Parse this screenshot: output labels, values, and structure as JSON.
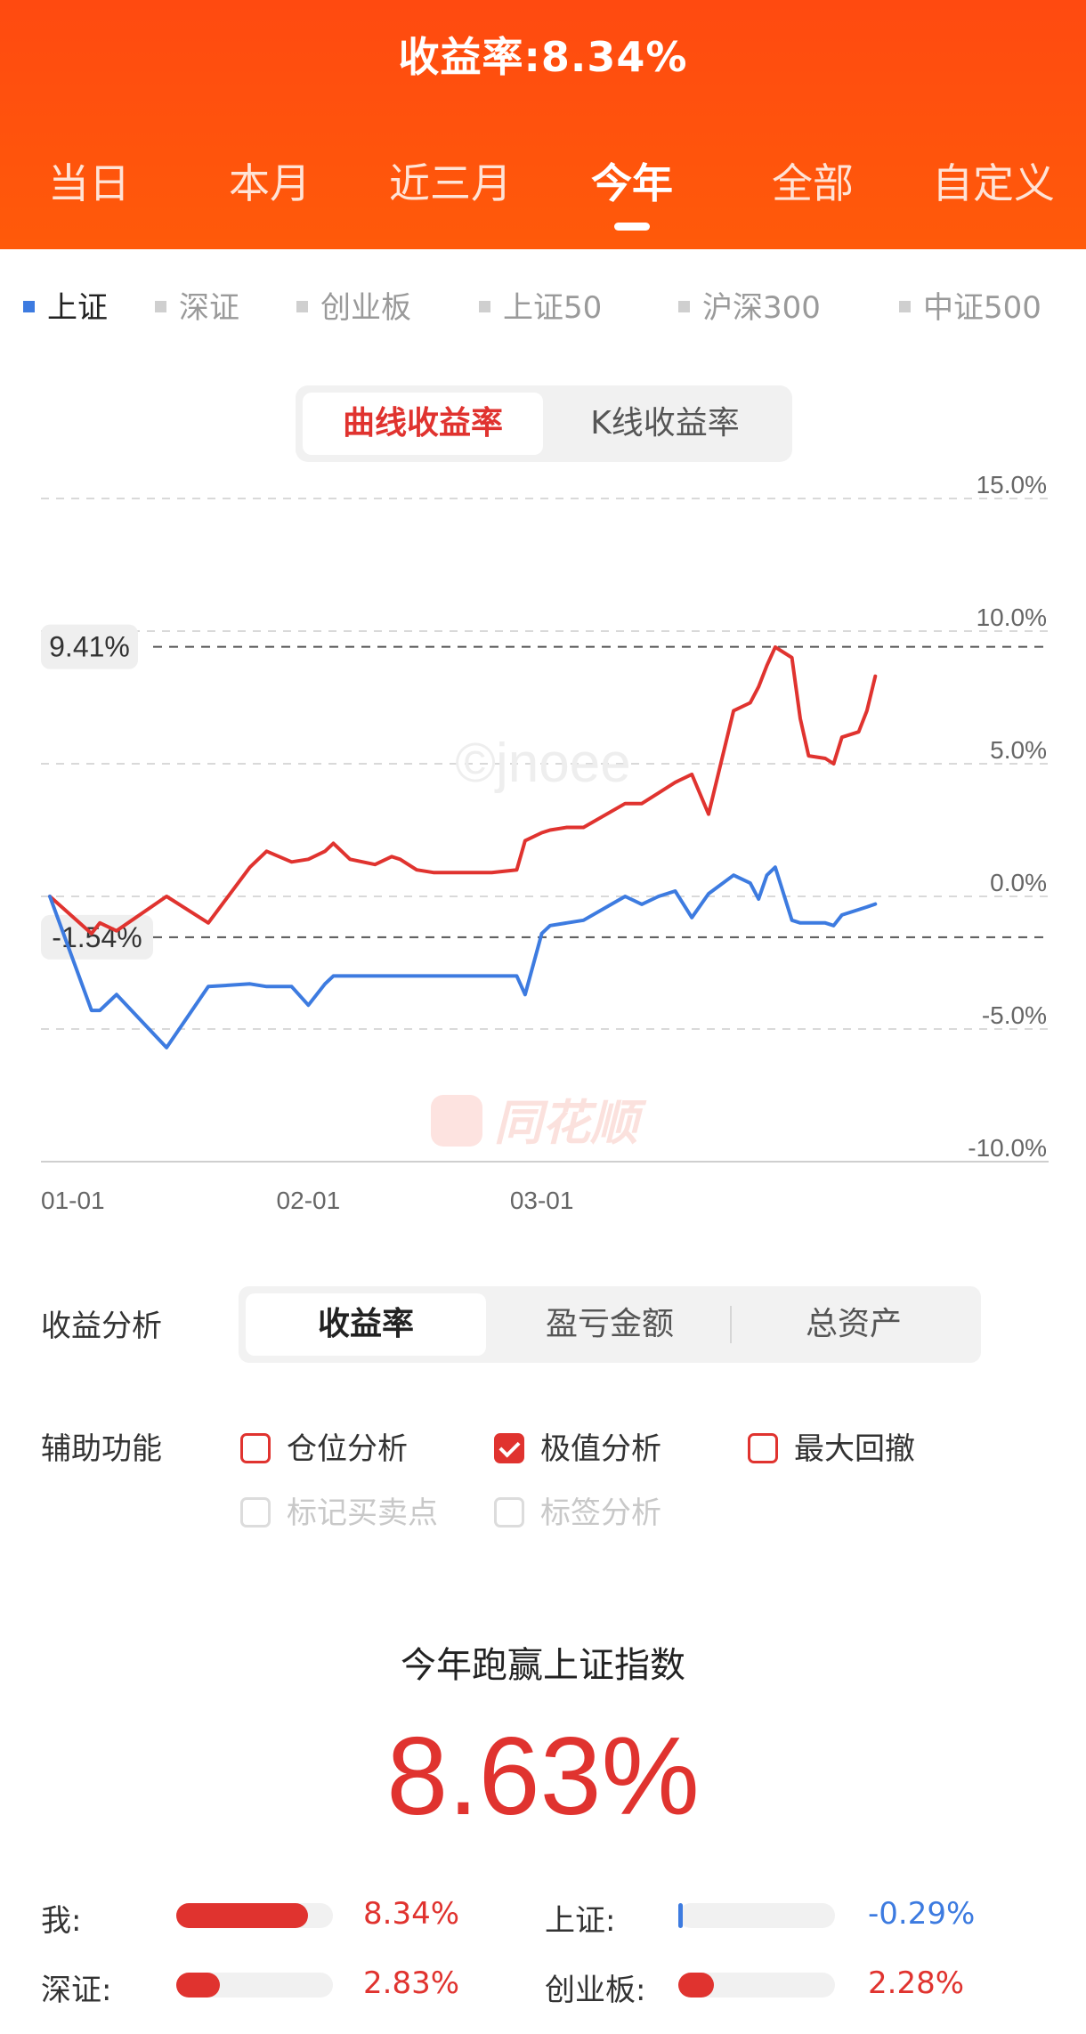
{
  "header": {
    "title": "收益率:8.34%",
    "tabs": [
      "当日",
      "本月",
      "近三月",
      "今年",
      "全部",
      "自定义"
    ],
    "active_tab": "今年"
  },
  "legend": {
    "items": [
      "上证",
      "深证",
      "创业板",
      "上证50",
      "沪深300",
      "中证500"
    ],
    "active": "上证"
  },
  "chart_mode": {
    "options": [
      "曲线收益率",
      "K线收益率"
    ],
    "active": "曲线收益率"
  },
  "colors": {
    "accent": "#ff5a0a",
    "mine": "#e0332f",
    "index": "#3d7be0"
  },
  "chart_data": {
    "type": "line",
    "x_tick_labels": [
      "01-01",
      "02-01",
      "03-01"
    ],
    "y_tick_labels": [
      "15.0%",
      "10.0%",
      "5.0%",
      "0.0%",
      "-5.0%",
      "-10.0%"
    ],
    "ylim": [
      -10,
      15
    ],
    "grid": true,
    "x": [
      0,
      5,
      6,
      8,
      14,
      19,
      24,
      26,
      29,
      31,
      33,
      34,
      36,
      39,
      41,
      42,
      44,
      46,
      49,
      51,
      53,
      56,
      57,
      59,
      60,
      62,
      64,
      69,
      71,
      73,
      75,
      77,
      79,
      82,
      84,
      85,
      86,
      87,
      89,
      90,
      91,
      93,
      94,
      95,
      97,
      98,
      99
    ],
    "max_marker": "9.41%",
    "min_marker": "-1.54%",
    "series": [
      {
        "values": [
          0.0,
          -1.4,
          -1.0,
          -1.3,
          0.0,
          -1.0,
          1.1,
          1.7,
          1.3,
          1.4,
          1.7,
          2.0,
          1.4,
          1.2,
          1.5,
          1.4,
          1.0,
          0.9,
          0.9,
          0.9,
          0.9,
          1.0,
          2.1,
          2.4,
          2.5,
          2.6,
          2.6,
          3.5,
          3.5,
          3.9,
          4.3,
          4.6,
          3.1,
          7.0,
          7.3,
          7.9,
          8.7,
          9.4,
          9.0,
          6.7,
          5.3,
          5.2,
          5.0,
          6.0,
          6.2,
          7.0,
          8.3
        ],
        "color": "#e0332f"
      },
      {
        "values": [
          0.0,
          -4.3,
          -4.3,
          -3.7,
          -5.7,
          -3.4,
          -3.3,
          -3.4,
          -3.4,
          -4.1,
          -3.3,
          -3.0,
          -3.0,
          -3.0,
          -3.0,
          -3.0,
          -3.0,
          -3.0,
          -3.0,
          -3.0,
          -3.0,
          -3.0,
          -3.7,
          -1.4,
          -1.1,
          -1.0,
          -0.9,
          0.0,
          -0.3,
          0.0,
          0.2,
          -0.8,
          0.1,
          0.8,
          0.5,
          -0.1,
          0.8,
          1.1,
          -0.9,
          -1.0,
          -1.0,
          -1.0,
          -1.1,
          -0.7,
          -0.5,
          -0.4,
          -0.29
        ],
        "color": "#3d7be0"
      }
    ]
  },
  "analysis": {
    "label": "收益分析",
    "options": [
      "收益率",
      "盈亏金额",
      "总资产"
    ],
    "active": "收益率"
  },
  "aux": {
    "label": "辅助功能",
    "options": [
      {
        "label": "仓位分析",
        "checked": false,
        "enabled": true
      },
      {
        "label": "极值分析",
        "checked": true,
        "enabled": true
      },
      {
        "label": "最大回撤",
        "checked": false,
        "enabled": true
      },
      {
        "label": "标记买卖点",
        "checked": false,
        "enabled": false
      },
      {
        "label": "标签分析",
        "checked": false,
        "enabled": false
      }
    ]
  },
  "beat": {
    "title": "今年跑赢上证指数",
    "value": "8.63%"
  },
  "compare": [
    {
      "label": "我:",
      "value": "8.34%",
      "fill": 0.84,
      "color": "#e0332f"
    },
    {
      "label": "上证:",
      "value": "-0.29%",
      "fill": 0.03,
      "color": "#3d7be0"
    },
    {
      "label": "深证:",
      "value": "2.83%",
      "fill": 0.28,
      "color": "#e0332f"
    },
    {
      "label": "创业板:",
      "value": "2.28%",
      "fill": 0.23,
      "color": "#e0332f"
    }
  ]
}
